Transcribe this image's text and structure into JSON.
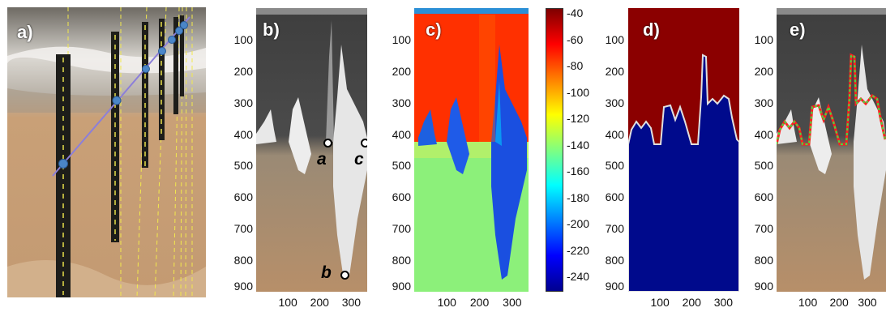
{
  "panels": {
    "a": {
      "label": "a)"
    },
    "b": {
      "label": "b)",
      "annotations": [
        "a",
        "b",
        "c"
      ]
    },
    "c": {
      "label": "c)"
    },
    "d": {
      "label": "d)"
    },
    "e": {
      "label": "e)"
    }
  },
  "axes": {
    "y_ticks": [
      "100",
      "200",
      "300",
      "400",
      "500",
      "600",
      "700",
      "800",
      "900"
    ],
    "x_ticks": [
      "100",
      "200",
      "300"
    ]
  },
  "colorbar": {
    "ticks": [
      "-40",
      "-60",
      "-80",
      "-100",
      "-120",
      "-140",
      "-160",
      "-180",
      "-200",
      "-220",
      "-240"
    ],
    "colors": [
      "#7f0000",
      "#ff0000",
      "#ff8000",
      "#ffff00",
      "#80ff80",
      "#00ffff",
      "#0080ff",
      "#0000ff",
      "#00008f"
    ]
  }
}
